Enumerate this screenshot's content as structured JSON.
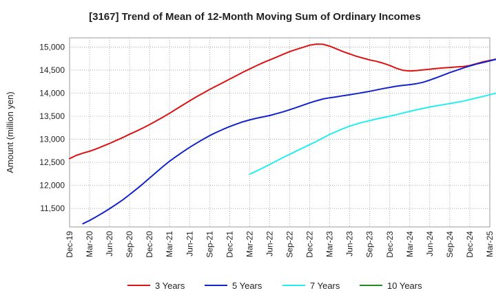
{
  "chart_data": {
    "type": "line",
    "title": "[3167]  Trend of Mean of 12-Month Moving Sum of Ordinary Incomes",
    "ylabel": "Amount (million yen)",
    "xlabel": "",
    "ylim": [
      11100,
      15200
    ],
    "yticks": [
      11500,
      12000,
      12500,
      13000,
      13500,
      14000,
      14500,
      15000
    ],
    "ytick_labels": [
      "11,500",
      "12,000",
      "12,500",
      "13,000",
      "13,500",
      "14,000",
      "14,500",
      "15,000"
    ],
    "x_tick_labels": [
      "Dec-19",
      "Mar-20",
      "Jun-20",
      "Sep-20",
      "Dec-20",
      "Mar-21",
      "Jun-21",
      "Sep-21",
      "Dec-21",
      "Mar-22",
      "Jun-22",
      "Sep-22",
      "Dec-22",
      "Mar-23",
      "Jun-23",
      "Sep-23",
      "Dec-23",
      "Mar-24",
      "Jun-24",
      "Sep-24",
      "Dec-24",
      "Mar-25"
    ],
    "grid": true,
    "legend_position": "bottom",
    "series": [
      {
        "name": "3 Years",
        "color": "#dd1111",
        "start": "Dec-19",
        "values": [
          12580,
          12650,
          12700,
          12740,
          12790,
          12850,
          12910,
          12975,
          13040,
          13110,
          13175,
          13245,
          13320,
          13400,
          13480,
          13565,
          13655,
          13745,
          13835,
          13920,
          14000,
          14080,
          14155,
          14230,
          14305,
          14380,
          14455,
          14525,
          14595,
          14660,
          14720,
          14780,
          14840,
          14900,
          14950,
          14995,
          15040,
          15065,
          15060,
          15020,
          14960,
          14900,
          14850,
          14800,
          14760,
          14720,
          14690,
          14650,
          14600,
          14540,
          14495,
          14480,
          14490,
          14505,
          14520,
          14535,
          14548,
          14558,
          14568,
          14578,
          14600,
          14640,
          14680,
          14710,
          14740,
          14770,
          14805,
          14840,
          14900
        ]
      },
      {
        "name": "5 Years",
        "color": "#1122cc",
        "start": "Feb-20",
        "values": [
          11170,
          11240,
          11320,
          11405,
          11495,
          11590,
          11690,
          11800,
          11915,
          12035,
          12160,
          12285,
          12410,
          12525,
          12630,
          12730,
          12825,
          12915,
          13000,
          13080,
          13150,
          13215,
          13275,
          13330,
          13380,
          13420,
          13455,
          13485,
          13515,
          13555,
          13595,
          13640,
          13690,
          13740,
          13790,
          13835,
          13875,
          13900,
          13920,
          13945,
          13965,
          13990,
          14015,
          14040,
          14070,
          14100,
          14125,
          14150,
          14170,
          14185,
          14205,
          14235,
          14285,
          14335,
          14390,
          14445,
          14495,
          14545,
          14590,
          14630,
          14665,
          14700,
          14735,
          14770,
          14795,
          14815,
          14830,
          14845,
          14860,
          14880,
          14900
        ]
      },
      {
        "name": "7 Years",
        "color": "#22eeee",
        "start": "Mar-22",
        "values": [
          12240,
          12310,
          12380,
          12455,
          12530,
          12605,
          12675,
          12745,
          12815,
          12885,
          12955,
          13030,
          13105,
          13170,
          13230,
          13285,
          13330,
          13370,
          13405,
          13440,
          13470,
          13500,
          13535,
          13570,
          13605,
          13640,
          13670,
          13700,
          13725,
          13750,
          13775,
          13800,
          13825,
          13860,
          13895,
          13930,
          13965,
          14005,
          14045,
          14090,
          14135,
          14180,
          14230,
          14295
        ]
      },
      {
        "name": "10 Years",
        "color": "#228822",
        "start": "Dec-24",
        "values": []
      }
    ]
  }
}
